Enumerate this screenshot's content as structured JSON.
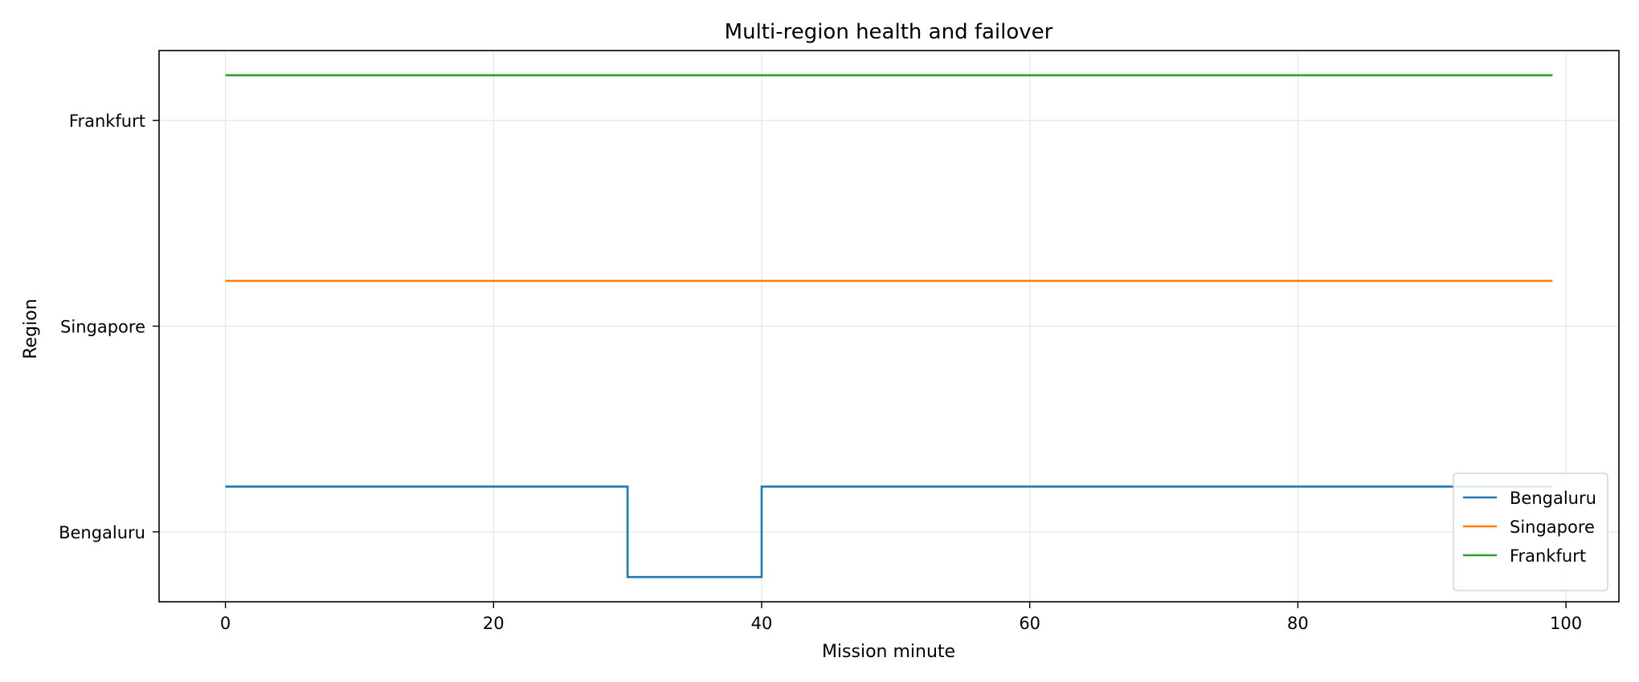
{
  "chart_data": {
    "type": "line",
    "title": "Multi-region health and failover",
    "xlabel": "Mission minute",
    "ylabel": "Region",
    "xlim": [
      -4.95,
      103.95
    ],
    "ylim": [
      -0.34,
      2.34
    ],
    "xticks": [
      0,
      20,
      40,
      60,
      80,
      100
    ],
    "xtick_labels": [
      "0",
      "20",
      "40",
      "60",
      "80",
      "100"
    ],
    "yticks": [
      0,
      1,
      2
    ],
    "ytick_labels": [
      "Bengaluru",
      "Singapore",
      "Frankfurt"
    ],
    "grid": true,
    "legend_position": "lower-right",
    "series": [
      {
        "name": "Bengaluru",
        "color": "#1f77b4",
        "step": true,
        "points": [
          [
            0,
            0.22
          ],
          [
            30,
            0.22
          ],
          [
            30,
            -0.22
          ],
          [
            40,
            -0.22
          ],
          [
            40,
            0.22
          ],
          [
            99,
            0.22
          ]
        ]
      },
      {
        "name": "Singapore",
        "color": "#ff7f0e",
        "step": true,
        "points": [
          [
            0,
            1.22
          ],
          [
            99,
            1.22
          ]
        ]
      },
      {
        "name": "Frankfurt",
        "color": "#2ca02c",
        "step": true,
        "points": [
          [
            0,
            2.22
          ],
          [
            99,
            2.22
          ]
        ]
      }
    ]
  }
}
